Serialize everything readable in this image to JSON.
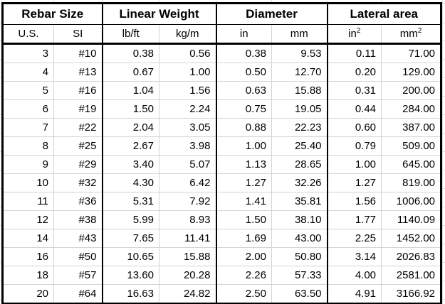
{
  "table": {
    "groups": [
      {
        "label": "Rebar Size"
      },
      {
        "label": "Linear Weight"
      },
      {
        "label": "Diameter"
      },
      {
        "label": "Lateral area"
      }
    ],
    "sub_headers": [
      {
        "text": "U.S.",
        "sup": ""
      },
      {
        "text": "SI",
        "sup": ""
      },
      {
        "text": "lb/ft",
        "sup": ""
      },
      {
        "text": "kg/m",
        "sup": ""
      },
      {
        "text": "in",
        "sup": ""
      },
      {
        "text": "mm",
        "sup": ""
      },
      {
        "text": "in",
        "sup": "2"
      },
      {
        "text": "mm",
        "sup": "2"
      }
    ],
    "rows": [
      [
        "3",
        "#10",
        "0.38",
        "0.56",
        "0.38",
        "9.53",
        "0.11",
        "71.00"
      ],
      [
        "4",
        "#13",
        "0.67",
        "1.00",
        "0.50",
        "12.70",
        "0.20",
        "129.00"
      ],
      [
        "5",
        "#16",
        "1.04",
        "1.56",
        "0.63",
        "15.88",
        "0.31",
        "200.00"
      ],
      [
        "6",
        "#19",
        "1.50",
        "2.24",
        "0.75",
        "19.05",
        "0.44",
        "284.00"
      ],
      [
        "7",
        "#22",
        "2.04",
        "3.05",
        "0.88",
        "22.23",
        "0.60",
        "387.00"
      ],
      [
        "8",
        "#25",
        "2.67",
        "3.98",
        "1.00",
        "25.40",
        "0.79",
        "509.00"
      ],
      [
        "9",
        "#29",
        "3.40",
        "5.07",
        "1.13",
        "28.65",
        "1.00",
        "645.00"
      ],
      [
        "10",
        "#32",
        "4.30",
        "6.42",
        "1.27",
        "32.26",
        "1.27",
        "819.00"
      ],
      [
        "11",
        "#36",
        "5.31",
        "7.92",
        "1.41",
        "35.81",
        "1.56",
        "1006.00"
      ],
      [
        "12",
        "#38",
        "5.99",
        "8.93",
        "1.50",
        "38.10",
        "1.77",
        "1140.09"
      ],
      [
        "14",
        "#43",
        "7.65",
        "11.41",
        "1.69",
        "43.00",
        "2.25",
        "1452.00"
      ],
      [
        "16",
        "#50",
        "10.65",
        "15.88",
        "2.00",
        "50.80",
        "3.14",
        "2026.83"
      ],
      [
        "18",
        "#57",
        "13.60",
        "20.28",
        "2.26",
        "57.33",
        "4.00",
        "2581.00"
      ],
      [
        "20",
        "#64",
        "16.63",
        "24.82",
        "2.50",
        "63.50",
        "4.91",
        "3166.92"
      ]
    ]
  },
  "chart_data": {
    "type": "table",
    "column_groups": [
      {
        "label": "Rebar Size",
        "columns": [
          "U.S.",
          "SI"
        ]
      },
      {
        "label": "Linear Weight",
        "columns": [
          "lb/ft",
          "kg/m"
        ]
      },
      {
        "label": "Diameter",
        "columns": [
          "in",
          "mm"
        ]
      },
      {
        "label": "Lateral area",
        "columns": [
          "in^2",
          "mm^2"
        ]
      }
    ],
    "columns": [
      "U.S.",
      "SI",
      "lb/ft",
      "kg/m",
      "in",
      "mm",
      "in^2",
      "mm^2"
    ],
    "rows": [
      [
        3,
        "#10",
        0.38,
        0.56,
        0.38,
        9.53,
        0.11,
        71.0
      ],
      [
        4,
        "#13",
        0.67,
        1.0,
        0.5,
        12.7,
        0.2,
        129.0
      ],
      [
        5,
        "#16",
        1.04,
        1.56,
        0.63,
        15.88,
        0.31,
        200.0
      ],
      [
        6,
        "#19",
        1.5,
        2.24,
        0.75,
        19.05,
        0.44,
        284.0
      ],
      [
        7,
        "#22",
        2.04,
        3.05,
        0.88,
        22.23,
        0.6,
        387.0
      ],
      [
        8,
        "#25",
        2.67,
        3.98,
        1.0,
        25.4,
        0.79,
        509.0
      ],
      [
        9,
        "#29",
        3.4,
        5.07,
        1.13,
        28.65,
        1.0,
        645.0
      ],
      [
        10,
        "#32",
        4.3,
        6.42,
        1.27,
        32.26,
        1.27,
        819.0
      ],
      [
        11,
        "#36",
        5.31,
        7.92,
        1.41,
        35.81,
        1.56,
        1006.0
      ],
      [
        12,
        "#38",
        5.99,
        8.93,
        1.5,
        38.1,
        1.77,
        1140.09
      ],
      [
        14,
        "#43",
        7.65,
        11.41,
        1.69,
        43.0,
        2.25,
        1452.0
      ],
      [
        16,
        "#50",
        10.65,
        15.88,
        2.0,
        50.8,
        3.14,
        2026.83
      ],
      [
        18,
        "#57",
        13.6,
        20.28,
        2.26,
        57.33,
        4.0,
        2581.0
      ],
      [
        20,
        "#64",
        16.63,
        24.82,
        2.5,
        63.5,
        4.91,
        3166.92
      ]
    ]
  },
  "colors": {
    "border": "#000000",
    "inner_grid": "#d4d4d4",
    "margin_grid": "#dcdcdc",
    "background": "#ffffff",
    "text": "#000000"
  }
}
